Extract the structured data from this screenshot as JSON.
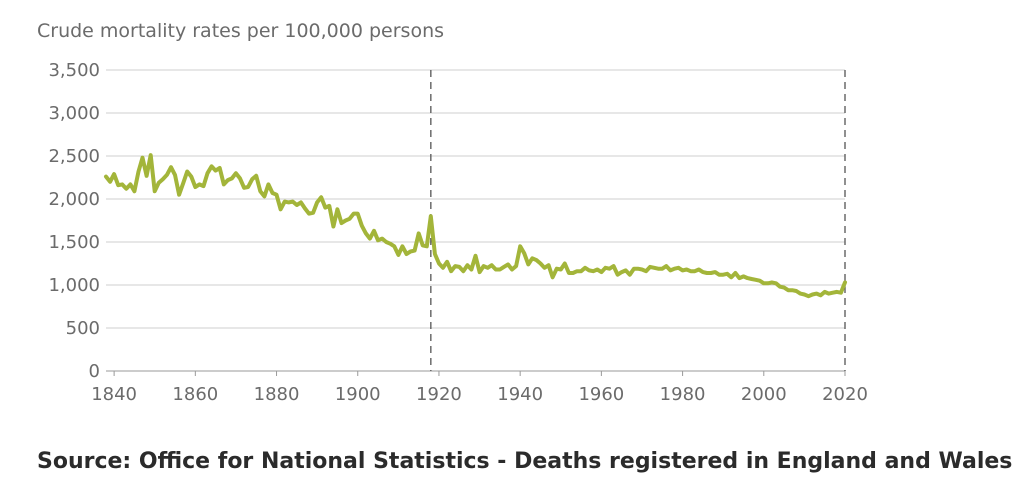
{
  "chart_data": {
    "type": "line",
    "ylabel": "Crude mortality rates per 100,000 persons",
    "source": "Source: Office for National Statistics - Deaths registered in England and Wales",
    "xlim": [
      1838,
      2020
    ],
    "ylim": [
      0,
      3500
    ],
    "x_ticks": [
      1840,
      1860,
      1880,
      1900,
      1920,
      1940,
      1960,
      1980,
      2000,
      2020
    ],
    "x_tick_labels": [
      "1840",
      "1860",
      "1880",
      "1900",
      "1920",
      "1940",
      "1960",
      "1980",
      "2000",
      "2020"
    ],
    "y_ticks": [
      0,
      500,
      1000,
      1500,
      2000,
      2500,
      3000,
      3500
    ],
    "y_tick_labels": [
      "0",
      "500",
      "1,000",
      "1,500",
      "2,000",
      "2,500",
      "3,000",
      "3,500"
    ],
    "grid": "horizontal",
    "reference_lines_x": [
      1918,
      2020
    ],
    "line_color": "#a3b53a",
    "series": [
      {
        "x": [
          1838,
          1839,
          1840,
          1841,
          1842,
          1843,
          1844,
          1845,
          1846,
          1847,
          1848,
          1849,
          1850,
          1851,
          1852,
          1853,
          1854,
          1855,
          1856,
          1857,
          1858,
          1859,
          1860,
          1861,
          1862,
          1863,
          1864,
          1865,
          1866,
          1867,
          1868,
          1869,
          1870,
          1871,
          1872,
          1873,
          1874,
          1875,
          1876,
          1877,
          1878,
          1879,
          1880,
          1881,
          1882,
          1883,
          1884,
          1885,
          1886,
          1887,
          1888,
          1889,
          1890,
          1891,
          1892,
          1893,
          1894,
          1895,
          1896,
          1897,
          1898,
          1899,
          1900,
          1901,
          1902,
          1903,
          1904,
          1905,
          1906,
          1907,
          1908,
          1909,
          1910,
          1911,
          1912,
          1913,
          1914,
          1915,
          1916,
          1917,
          1918,
          1919,
          1920,
          1921,
          1922,
          1923,
          1924,
          1925,
          1926,
          1927,
          1928,
          1929,
          1930,
          1931,
          1932,
          1933,
          1934,
          1935,
          1936,
          1937,
          1938,
          1939,
          1940,
          1941,
          1942,
          1943,
          1944,
          1945,
          1946,
          1947,
          1948,
          1949,
          1950,
          1951,
          1952,
          1953,
          1954,
          1955,
          1956,
          1957,
          1958,
          1959,
          1960,
          1961,
          1962,
          1963,
          1964,
          1965,
          1966,
          1967,
          1968,
          1969,
          1970,
          1971,
          1972,
          1973,
          1974,
          1975,
          1976,
          1977,
          1978,
          1979,
          1980,
          1981,
          1982,
          1983,
          1984,
          1985,
          1986,
          1987,
          1988,
          1989,
          1990,
          1991,
          1992,
          1993,
          1994,
          1995,
          1996,
          1997,
          1998,
          1999,
          2000,
          2001,
          2002,
          2003,
          2004,
          2005,
          2006,
          2007,
          2008,
          2009,
          2010,
          2011,
          2012,
          2013,
          2014,
          2015,
          2016,
          2017,
          2018,
          2019,
          2020
        ],
        "y": [
          2260,
          2200,
          2290,
          2160,
          2170,
          2120,
          2170,
          2090,
          2320,
          2480,
          2270,
          2510,
          2090,
          2190,
          2230,
          2280,
          2370,
          2280,
          2050,
          2180,
          2320,
          2260,
          2140,
          2170,
          2150,
          2300,
          2380,
          2330,
          2360,
          2170,
          2220,
          2240,
          2300,
          2240,
          2130,
          2140,
          2230,
          2270,
          2090,
          2030,
          2170,
          2070,
          2050,
          1880,
          1970,
          1960,
          1970,
          1930,
          1960,
          1890,
          1830,
          1840,
          1960,
          2020,
          1900,
          1920,
          1680,
          1880,
          1720,
          1750,
          1770,
          1830,
          1830,
          1690,
          1600,
          1540,
          1630,
          1520,
          1540,
          1500,
          1480,
          1450,
          1350,
          1450,
          1360,
          1390,
          1400,
          1600,
          1460,
          1450,
          1800,
          1360,
          1250,
          1200,
          1270,
          1160,
          1220,
          1210,
          1160,
          1230,
          1180,
          1340,
          1150,
          1220,
          1200,
          1230,
          1180,
          1180,
          1210,
          1240,
          1180,
          1220,
          1450,
          1370,
          1240,
          1310,
          1290,
          1250,
          1200,
          1230,
          1090,
          1190,
          1180,
          1250,
          1140,
          1140,
          1160,
          1160,
          1200,
          1170,
          1160,
          1180,
          1150,
          1200,
          1190,
          1220,
          1120,
          1150,
          1170,
          1120,
          1190,
          1190,
          1180,
          1160,
          1210,
          1200,
          1190,
          1190,
          1220,
          1170,
          1190,
          1200,
          1170,
          1180,
          1160,
          1160,
          1180,
          1150,
          1140,
          1140,
          1150,
          1120,
          1120,
          1130,
          1090,
          1140,
          1080,
          1100,
          1080,
          1070,
          1060,
          1050,
          1020,
          1020,
          1030,
          1020,
          980,
          970,
          940,
          940,
          930,
          900,
          890,
          870,
          890,
          900,
          880,
          920,
          900,
          910,
          920,
          910,
          1030
        ]
      }
    ]
  }
}
